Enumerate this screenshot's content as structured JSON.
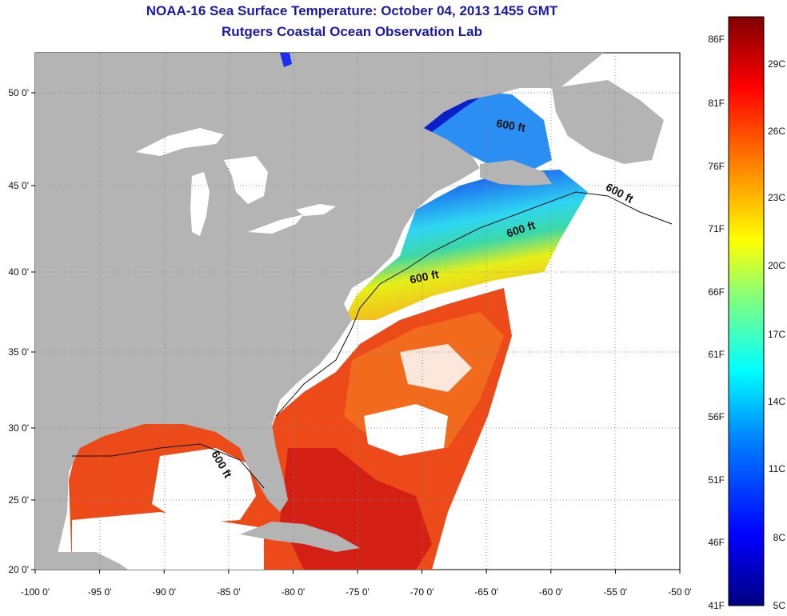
{
  "header": {
    "title": "NOAA-16 Sea Surface Temperature:  October 04, 2013 1455 GMT",
    "subtitle": "Rutgers Coastal Ocean Observation Lab"
  },
  "map": {
    "lon_range": [
      -100,
      -50
    ],
    "lat_range": [
      20,
      52.5
    ],
    "lon_ticks": [
      {
        "value": -100,
        "label": "-100 0'"
      },
      {
        "value": -95,
        "label": "-95 0'"
      },
      {
        "value": -90,
        "label": "-90 0'"
      },
      {
        "value": -85,
        "label": "-85 0'"
      },
      {
        "value": -80,
        "label": "-80 0'"
      },
      {
        "value": -75,
        "label": "-75 0'"
      },
      {
        "value": -70,
        "label": "-70 0'"
      },
      {
        "value": -65,
        "label": "-65 0'"
      },
      {
        "value": -60,
        "label": "-60 0'"
      },
      {
        "value": -55,
        "label": "-55 0'"
      },
      {
        "value": -50,
        "label": "-50 0'"
      }
    ],
    "lat_ticks": [
      {
        "value": 20,
        "label": "20 0'"
      },
      {
        "value": 25,
        "label": "25 0'"
      },
      {
        "value": 30,
        "label": "30 0'"
      },
      {
        "value": 35,
        "label": "35 0'"
      },
      {
        "value": 40,
        "label": "40 0'"
      },
      {
        "value": 45,
        "label": "45 0'"
      },
      {
        "value": 50,
        "label": "50 0'"
      }
    ],
    "grid": "dotted",
    "land_color": "#b4b4b4",
    "cloud_color": "#ffffff",
    "contour_labels": [
      "600 ft",
      "600 ft",
      "600 ft",
      "600 ft",
      "600 ft"
    ]
  },
  "colorbar": {
    "fahrenheit_labels": [
      "86F",
      "81F",
      "76F",
      "71F",
      "66F",
      "61F",
      "56F",
      "51F",
      "46F",
      "41F"
    ],
    "celsius_labels": [
      "29C",
      "26C",
      "23C",
      "20C",
      "17C",
      "14C",
      "11C",
      "8C",
      "5C"
    ],
    "colors": [
      "#000080",
      "#0000ff",
      "#0080ff",
      "#00ffff",
      "#80ff80",
      "#ffff00",
      "#ff8000",
      "#ff0000",
      "#800000"
    ]
  }
}
